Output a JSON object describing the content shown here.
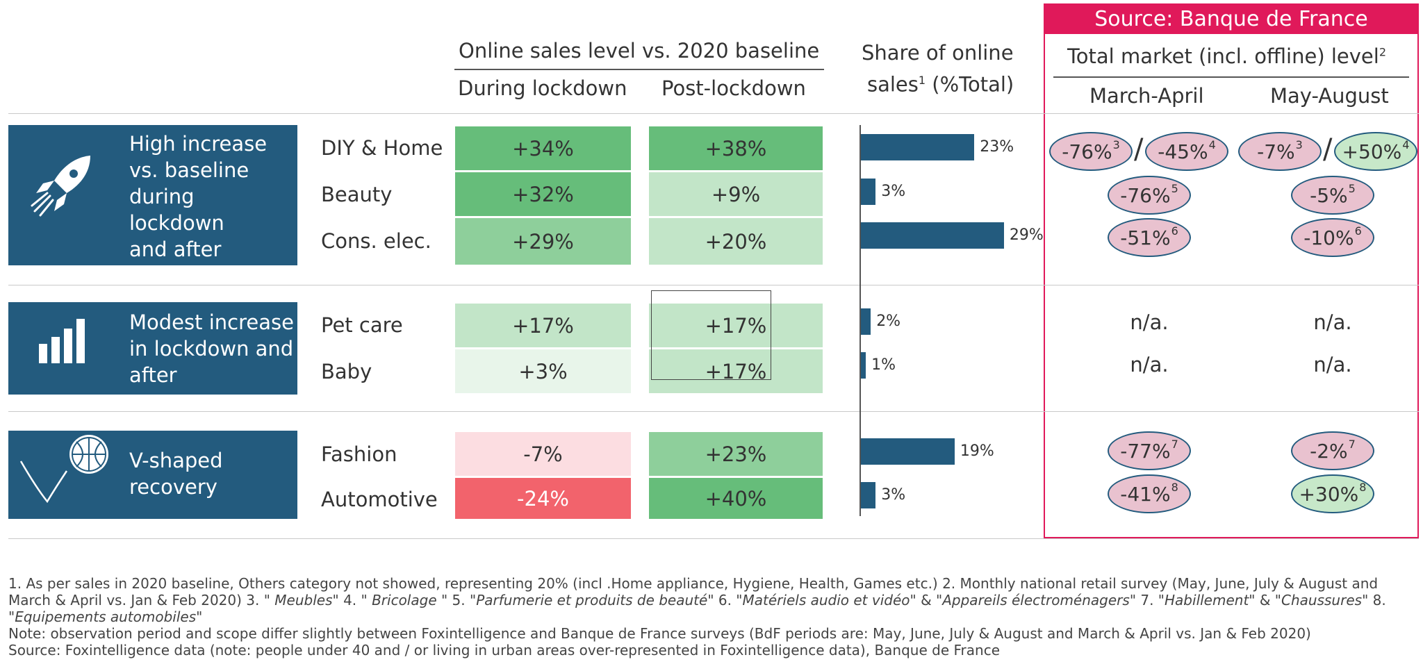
{
  "colors": {
    "navy": "#235b7e",
    "accent_pink": "#e0195a",
    "green_dark": "#66bd7a",
    "green_mid": "#8ecf9b",
    "green_light": "#c2e5c8",
    "green_pale": "#e8f5ea",
    "red_light": "#fcdde1",
    "red_strong": "#f2636c",
    "oval_pink": "#e9c2cf",
    "oval_green": "#c7e8c9"
  },
  "headers": {
    "online_sales": "Online sales level vs. 2020 baseline",
    "during": "During lockdown",
    "post": "Post-lockdown",
    "share_line1": "Share of online",
    "share_line2": "sales",
    "share_sup": "1",
    "share_suffix": " (%Total)",
    "source_banner": "Source: Banque de France",
    "total_market": "Total market (incl. offline) level",
    "total_market_sup": "2",
    "march_april": "March-April",
    "may_august": "May-August"
  },
  "groups": [
    {
      "label": "High increase vs. baseline during lockdown and after",
      "icon": "rocket-icon"
    },
    {
      "label": "Modest increase in lockdown and after",
      "icon": "bar-chart-icon"
    },
    {
      "label": "V-shaped recovery",
      "icon": "basketball-icon"
    }
  ],
  "chart_data": {
    "type": "table",
    "columns": [
      "During lockdown",
      "Post-lockdown",
      "Share of online sales (%Total)",
      "March-April",
      "May-August"
    ],
    "rows": [
      {
        "category": "DIY & Home",
        "during": "+34%",
        "post": "+38%",
        "share": 23,
        "share_label": "23%",
        "march_april": [
          {
            "value": "-76%",
            "note": "3",
            "tone": "pink"
          },
          {
            "value": "-45%",
            "note": "4",
            "tone": "pink"
          }
        ],
        "may_august": [
          {
            "value": "-7%",
            "note": "3",
            "tone": "pink"
          },
          {
            "value": "+50%",
            "note": "4",
            "tone": "green"
          }
        ]
      },
      {
        "category": "Beauty",
        "during": "+32%",
        "post": "+9%",
        "share": 3,
        "share_label": "3%",
        "march_april": [
          {
            "value": "-76%",
            "note": "5",
            "tone": "pink"
          }
        ],
        "may_august": [
          {
            "value": "-5%",
            "note": "5",
            "tone": "pink"
          }
        ]
      },
      {
        "category": "Cons. elec.",
        "during": "+29%",
        "post": "+20%",
        "share": 29,
        "share_label": "29%",
        "march_april": [
          {
            "value": "-51%",
            "note": "6",
            "tone": "pink"
          }
        ],
        "may_august": [
          {
            "value": "-10%",
            "note": "6",
            "tone": "pink"
          }
        ]
      },
      {
        "category": "Pet care",
        "during": "+17%",
        "post": "+17%",
        "share": 2,
        "share_label": "2%",
        "march_april_na": "n/a.",
        "may_august_na": "n/a."
      },
      {
        "category": "Baby",
        "during": "+3%",
        "post": "+17%",
        "share": 1,
        "share_label": "1%",
        "march_april_na": "n/a.",
        "may_august_na": "n/a."
      },
      {
        "category": "Fashion",
        "during": "-7%",
        "post": "+23%",
        "share": 19,
        "share_label": "19%",
        "march_april": [
          {
            "value": "-77%",
            "note": "7",
            "tone": "pink"
          }
        ],
        "may_august": [
          {
            "value": "-2%",
            "note": "7",
            "tone": "pink"
          }
        ]
      },
      {
        "category": "Automotive",
        "during": "-24%",
        "post": "+40%",
        "share": 3,
        "share_label": "3%",
        "march_april": [
          {
            "value": "-41%",
            "note": "8",
            "tone": "pink"
          }
        ],
        "may_august": [
          {
            "value": "+30%",
            "note": "8",
            "tone": "green"
          }
        ]
      }
    ]
  },
  "footnotes": {
    "f1": "1. As per sales in 2020 baseline, Others category not showed, representing 20% (incl .Home appliance, Hygiene, Health, Games etc.)  2. Monthly national retail survey (May, June, July & August and March & April vs. Jan & Feb 2020) 3. \"",
    "meubles": " Meubles",
    "f2": "\" 4. \"",
    "bricolage": " Bricolage ",
    "f3": "\" 5. \"",
    "parfumerie": "Parfumerie et produits de beauté",
    "f4": "\" 6. \"",
    "materiels": "Matériels audio et vidéo",
    "f5": "\" & \"",
    "appareils": "Appareils électroménagers",
    "f6": "\" 7. \"",
    "habillement": "Habillement",
    "f7": "\" & \"",
    "chaussures": "Chaussures",
    "f8": "\" 8. \"",
    "equipements": "Equipements automobiles",
    "f9": "\"",
    "note": "Note: observation period and scope differ slightly between Foxintelligence and Banque de France surveys (BdF periods are: May, June, July & August and March & April vs. Jan & Feb 2020)",
    "source": "Source: Foxintelligence data (note: people under 40 and / or living in urban areas over-represented in Foxintelligence data), Banque de France"
  }
}
